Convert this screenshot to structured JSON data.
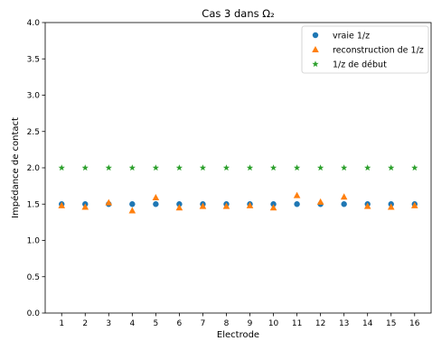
{
  "chart_data": {
    "type": "scatter",
    "title": "Cas 3 dans Ω₂",
    "xlabel": "Electrode",
    "ylabel": "Impédance de contact",
    "x": [
      1,
      2,
      3,
      4,
      5,
      6,
      7,
      8,
      9,
      10,
      11,
      12,
      13,
      14,
      15,
      16
    ],
    "xticks": [
      "1",
      "2",
      "3",
      "4",
      "5",
      "6",
      "7",
      "8",
      "9",
      "10",
      "11",
      "12",
      "13",
      "14",
      "15",
      "16"
    ],
    "xlim": [
      0.3,
      16.7
    ],
    "ylim": [
      0,
      4
    ],
    "yticks": [
      "0.0",
      "0.5",
      "1.0",
      "1.5",
      "2.0",
      "2.5",
      "3.0",
      "3.5",
      "4.0"
    ],
    "grid": false,
    "legend_position": "top-right",
    "series": [
      {
        "name": "vraie 1/z",
        "marker": "circle",
        "color": "#1f77b4",
        "values": [
          1.5,
          1.5,
          1.5,
          1.5,
          1.5,
          1.5,
          1.5,
          1.5,
          1.5,
          1.5,
          1.5,
          1.5,
          1.5,
          1.5,
          1.5,
          1.5
        ]
      },
      {
        "name": "reconstruction de 1/z",
        "marker": "triangle",
        "color": "#ff7f0e",
        "values": [
          1.48,
          1.46,
          1.52,
          1.41,
          1.59,
          1.45,
          1.47,
          1.47,
          1.48,
          1.45,
          1.62,
          1.53,
          1.6,
          1.47,
          1.46,
          1.48
        ]
      },
      {
        "name": "1/z de début",
        "marker": "star",
        "color": "#2ca02c",
        "values": [
          2.0,
          2.0,
          2.0,
          2.0,
          2.0,
          2.0,
          2.0,
          2.0,
          2.0,
          2.0,
          2.0,
          2.0,
          2.0,
          2.0,
          2.0,
          2.0
        ]
      }
    ]
  }
}
